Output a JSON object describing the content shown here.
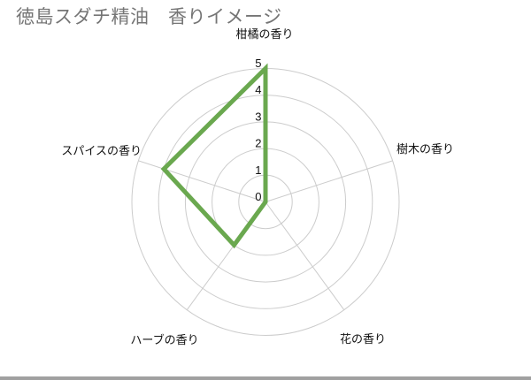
{
  "chart_data": {
    "type": "radar",
    "title": "徳島スダチ精油　香りイメージ",
    "categories": [
      "柑橘の香り",
      "樹木の香り",
      "花の香り",
      "ハーブの香り",
      "スパイスの香り"
    ],
    "series": [
      {
        "values": [
          5,
          0,
          0,
          2,
          4
        ],
        "color": "#6aa84f",
        "line_width": 5,
        "fill": "none"
      }
    ],
    "ticks": [
      0,
      1,
      2,
      3,
      4,
      5
    ],
    "r_range": [
      0,
      5
    ],
    "grid": {
      "rings": 5,
      "spokes": 5,
      "on": true,
      "color": "#cccccc"
    },
    "legend_position": "none",
    "title_color": "#757575",
    "label_color": "#111111"
  },
  "scrollbar": {
    "orientation": "horizontal",
    "color": "#a0a0a0"
  }
}
